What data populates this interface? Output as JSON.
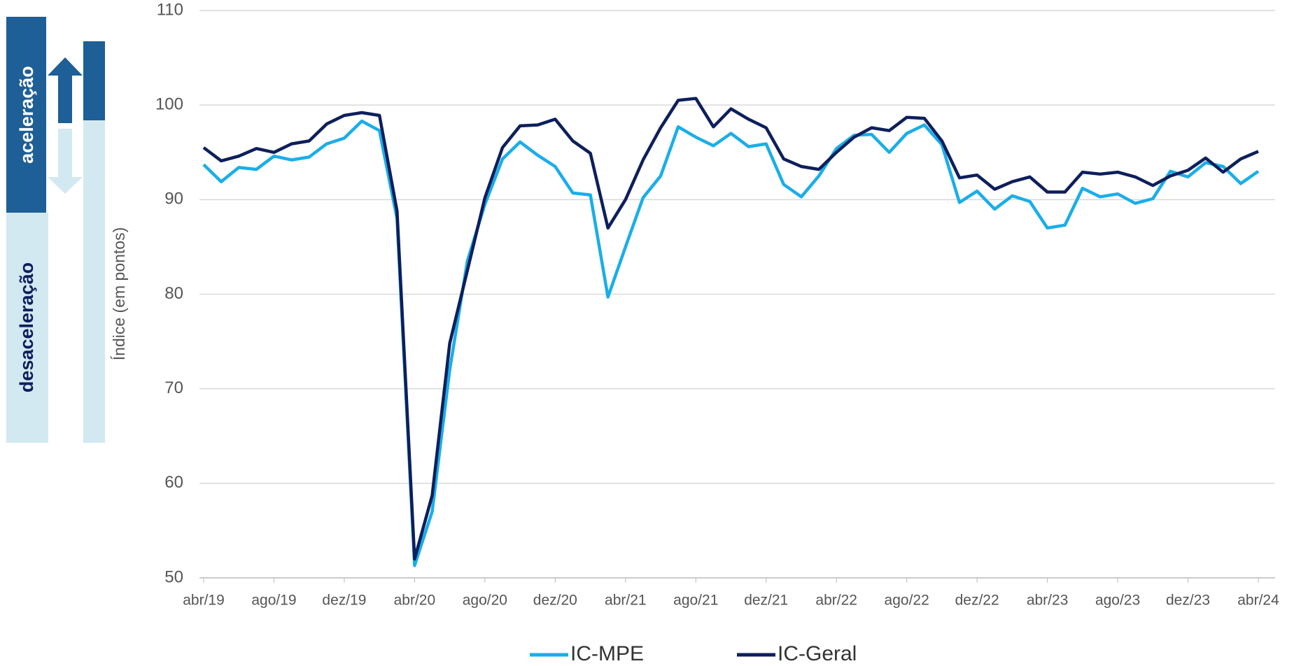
{
  "chart_data": {
    "type": "line",
    "y_label": "Índice (em pontos)",
    "annotations": [
      "aceleração",
      "desaceleração"
    ],
    "categories": [
      "abr/19",
      null,
      null,
      null,
      "ago/19",
      null,
      null,
      null,
      "dez/19",
      null,
      null,
      null,
      "abr/20",
      null,
      null,
      null,
      "ago/20",
      null,
      null,
      null,
      "dez/20",
      null,
      null,
      null,
      "abr/21",
      null,
      null,
      null,
      "ago/21",
      null,
      null,
      null,
      "dez/21",
      null,
      null,
      null,
      "abr/22",
      null,
      null,
      null,
      "ago/22",
      null,
      null,
      null,
      "dez/22",
      null,
      null,
      null,
      "abr/23",
      null,
      null,
      null,
      "ago/23",
      null,
      null,
      null,
      "dez/23",
      null,
      null,
      null,
      "abr/24"
    ],
    "series": [
      {
        "name": "IC-MPE",
        "color": "#1aaee8",
        "values": [
          93.7,
          91.9,
          93.4,
          93.2,
          94.6,
          94.2,
          94.5,
          95.9,
          96.5,
          98.3,
          97.3,
          88.0,
          51.3,
          57.0,
          72.0,
          83.5,
          89.5,
          94.3,
          96.1,
          94.7,
          93.5,
          90.7,
          90.5,
          79.7,
          85.0,
          90.2,
          92.5,
          97.7,
          96.6,
          95.7,
          97.0,
          95.6,
          95.9,
          91.6,
          90.3,
          92.5,
          95.4,
          96.8,
          96.9,
          95.0,
          97.0,
          97.9,
          95.8,
          89.7,
          90.9,
          89.0,
          90.4,
          89.8,
          87.0,
          87.3,
          91.2,
          90.3,
          90.6,
          89.6,
          90.1,
          93.0,
          92.4,
          93.9,
          93.5,
          91.7,
          93.0
        ]
      },
      {
        "name": "IC-Geral",
        "color": "#0d1f5c",
        "values": [
          95.5,
          94.1,
          94.6,
          95.4,
          95.0,
          95.9,
          96.2,
          98.0,
          98.9,
          99.2,
          98.9,
          88.8,
          52.0,
          58.7,
          74.8,
          82.5,
          90.2,
          95.5,
          97.8,
          97.9,
          98.5,
          96.2,
          94.9,
          87.0,
          90.0,
          94.2,
          97.6,
          100.5,
          100.7,
          97.7,
          99.6,
          98.5,
          97.6,
          94.3,
          93.5,
          93.2,
          95.0,
          96.6,
          97.6,
          97.3,
          98.7,
          98.6,
          96.2,
          92.3,
          92.6,
          91.1,
          91.9,
          92.4,
          90.8,
          90.8,
          92.9,
          92.7,
          92.9,
          92.4,
          91.5,
          92.5,
          93.1,
          94.4,
          92.9,
          94.3,
          95.1
        ]
      }
    ],
    "ylim": [
      50,
      110
    ],
    "yticks": [
      50,
      60,
      70,
      80,
      90,
      100,
      110
    ],
    "grid": true,
    "legend": "bottom"
  }
}
